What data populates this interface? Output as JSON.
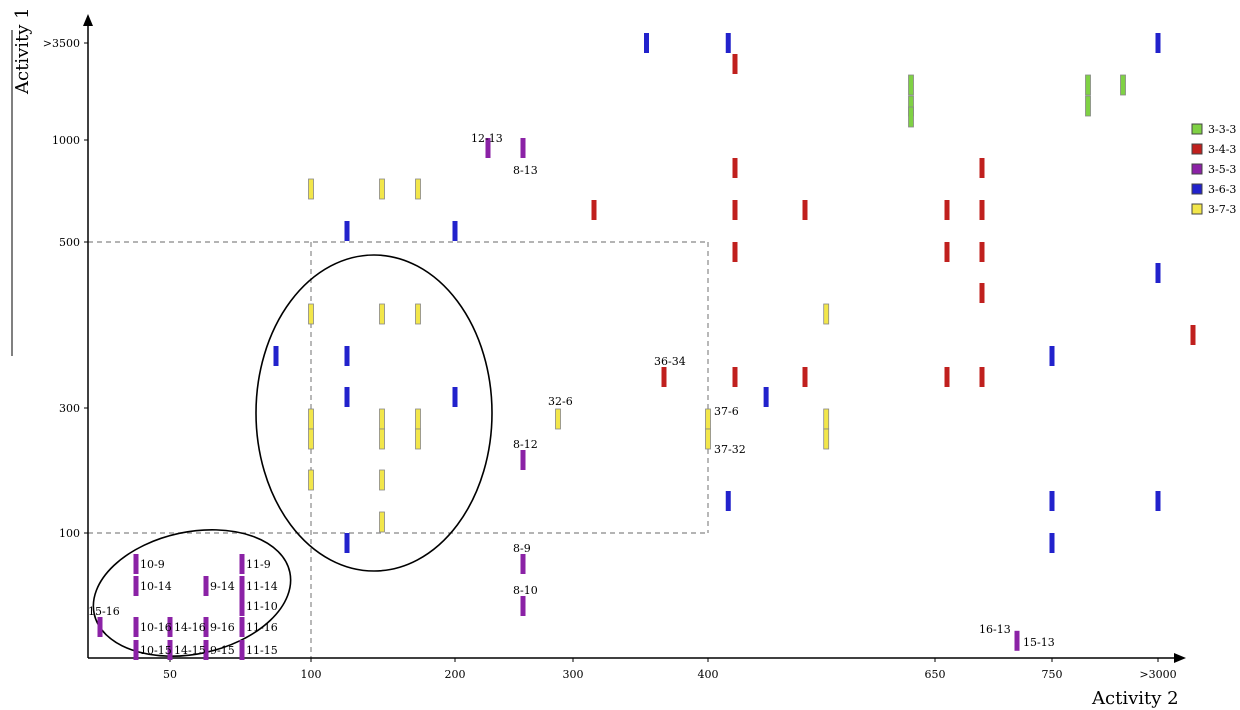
{
  "chart_data": {
    "type": "scatter",
    "xlabel": "Activity 2",
    "ylabel": "Activity 1",
    "x_ticks": [
      {
        "label": "50",
        "v": 50
      },
      {
        "label": "100",
        "v": 100
      },
      {
        "label": "200",
        "v": 200
      },
      {
        "label": "300",
        "v": 300
      },
      {
        "label": "400",
        "v": 400
      },
      {
        "label": "650",
        "v": 650
      },
      {
        "label": "750",
        "v": 750
      },
      {
        "label": ">3000",
        "v": 3000
      }
    ],
    "y_ticks": [
      {
        "label": "100",
        "v": 100
      },
      {
        "label": "300",
        "v": 300
      },
      {
        "label": "500",
        "v": 500
      },
      {
        "label": "1000",
        "v": 1000
      },
      {
        "label": ">3500",
        "v": 3500
      }
    ],
    "thresholds": {
      "x": [
        100,
        400
      ],
      "y": [
        100,
        500
      ]
    },
    "legend": [
      {
        "name": "3-3-3",
        "color": "#7fd144"
      },
      {
        "name": "3-4-3",
        "color": "#c0201e"
      },
      {
        "name": "3-5-3",
        "color": "#8b22a6"
      },
      {
        "name": "3-6-3",
        "color": "#2222cc"
      },
      {
        "name": "3-7-3",
        "color": "#f2e64a"
      }
    ],
    "series": [
      {
        "name": "3-3-3",
        "points": [
          [
            620,
            1500
          ],
          [
            620,
            1300
          ],
          [
            620,
            1150
          ],
          [
            900,
            1500
          ],
          [
            900,
            1300
          ],
          [
            1500,
            1500
          ]
        ]
      },
      {
        "name": "3-4-3",
        "points": [
          [
            480,
            2500
          ],
          [
            480,
            800
          ],
          [
            480,
            630
          ],
          [
            480,
            480
          ],
          [
            480,
            330
          ],
          [
            330,
            630
          ],
          [
            370,
            330
          ],
          [
            570,
            630
          ],
          [
            570,
            330
          ],
          [
            680,
            630
          ],
          [
            680,
            480
          ],
          [
            680,
            330
          ],
          [
            710,
            800
          ],
          [
            710,
            630
          ],
          [
            710,
            480
          ],
          [
            710,
            410
          ],
          [
            710,
            330
          ],
          [
            4000,
            370
          ]
        ]
      },
      {
        "name": "3-5-3",
        "points": [
          [
            240,
            970
          ],
          [
            260,
            970
          ],
          [
            260,
            250
          ],
          [
            260,
            85
          ],
          [
            260,
            65
          ],
          [
            42,
            85
          ],
          [
            42,
            75
          ],
          [
            42,
            55
          ],
          [
            42,
            50
          ],
          [
            50,
            55
          ],
          [
            50,
            50
          ],
          [
            60,
            75
          ],
          [
            60,
            55
          ],
          [
            60,
            50
          ],
          [
            70,
            85
          ],
          [
            70,
            75
          ],
          [
            70,
            65
          ],
          [
            70,
            55
          ],
          [
            70,
            50
          ],
          [
            35,
            55
          ],
          [
            820,
            52
          ]
        ]
      },
      {
        "name": "3-6-3",
        "points": [
          [
            360,
            3500
          ],
          [
            460,
            3500
          ],
          [
            3000,
            3500
          ],
          [
            3000,
            450
          ],
          [
            115,
            530
          ],
          [
            200,
            530
          ],
          [
            88,
            350
          ],
          [
            115,
            350
          ],
          [
            115,
            310
          ],
          [
            200,
            310
          ],
          [
            520,
            310
          ],
          [
            750,
            350
          ],
          [
            460,
            200
          ],
          [
            750,
            200
          ],
          [
            3000,
            200
          ],
          [
            115,
            90
          ],
          [
            750,
            90
          ]
        ]
      },
      {
        "name": "3-7-3",
        "points": [
          [
            100,
            760
          ],
          [
            130,
            760
          ],
          [
            150,
            760
          ],
          [
            100,
            390
          ],
          [
            130,
            390
          ],
          [
            150,
            390
          ],
          [
            580,
            390
          ],
          [
            100,
            285
          ],
          [
            100,
            265
          ],
          [
            130,
            285
          ],
          [
            130,
            265
          ],
          [
            150,
            285
          ],
          [
            150,
            265
          ],
          [
            100,
            220
          ],
          [
            130,
            220
          ],
          [
            130,
            160
          ],
          [
            290,
            290
          ],
          [
            400,
            285
          ],
          [
            400,
            265
          ],
          [
            580,
            285
          ],
          [
            580,
            265
          ]
        ]
      }
    ],
    "annotations": [
      {
        "text": "12-13",
        "x": 240,
        "y": 970
      },
      {
        "text": "8-13",
        "x": 260,
        "y": 970
      },
      {
        "text": "36-34",
        "x": 370,
        "y": 330
      },
      {
        "text": "32-6",
        "x": 290,
        "y": 290
      },
      {
        "text": "37-6",
        "x": 400,
        "y": 285
      },
      {
        "text": "37-32",
        "x": 400,
        "y": 265
      },
      {
        "text": "8-12",
        "x": 260,
        "y": 250
      },
      {
        "text": "8-9",
        "x": 260,
        "y": 85
      },
      {
        "text": "8-10",
        "x": 260,
        "y": 65
      },
      {
        "text": "10-9",
        "x": 42,
        "y": 85
      },
      {
        "text": "10-14",
        "x": 42,
        "y": 75
      },
      {
        "text": "9-14",
        "x": 60,
        "y": 75
      },
      {
        "text": "11-9",
        "x": 70,
        "y": 85
      },
      {
        "text": "11-14",
        "x": 70,
        "y": 75
      },
      {
        "text": "11-10",
        "x": 70,
        "y": 65
      },
      {
        "text": "15-16",
        "x": 35,
        "y": 55
      },
      {
        "text": "10-16",
        "x": 42,
        "y": 55
      },
      {
        "text": "14-16",
        "x": 50,
        "y": 55
      },
      {
        "text": "9-16",
        "x": 60,
        "y": 55
      },
      {
        "text": "11-16",
        "x": 70,
        "y": 55
      },
      {
        "text": "10-15",
        "x": 42,
        "y": 50
      },
      {
        "text": "14-15",
        "x": 50,
        "y": 50
      },
      {
        "text": "9-15",
        "x": 60,
        "y": 50
      },
      {
        "text": "11-15",
        "x": 70,
        "y": 50
      },
      {
        "text": "16-13",
        "x": 820,
        "y": 55
      },
      {
        "text": "15-13",
        "x": 820,
        "y": 50
      }
    ],
    "grid": false,
    "legend_position": "right"
  }
}
